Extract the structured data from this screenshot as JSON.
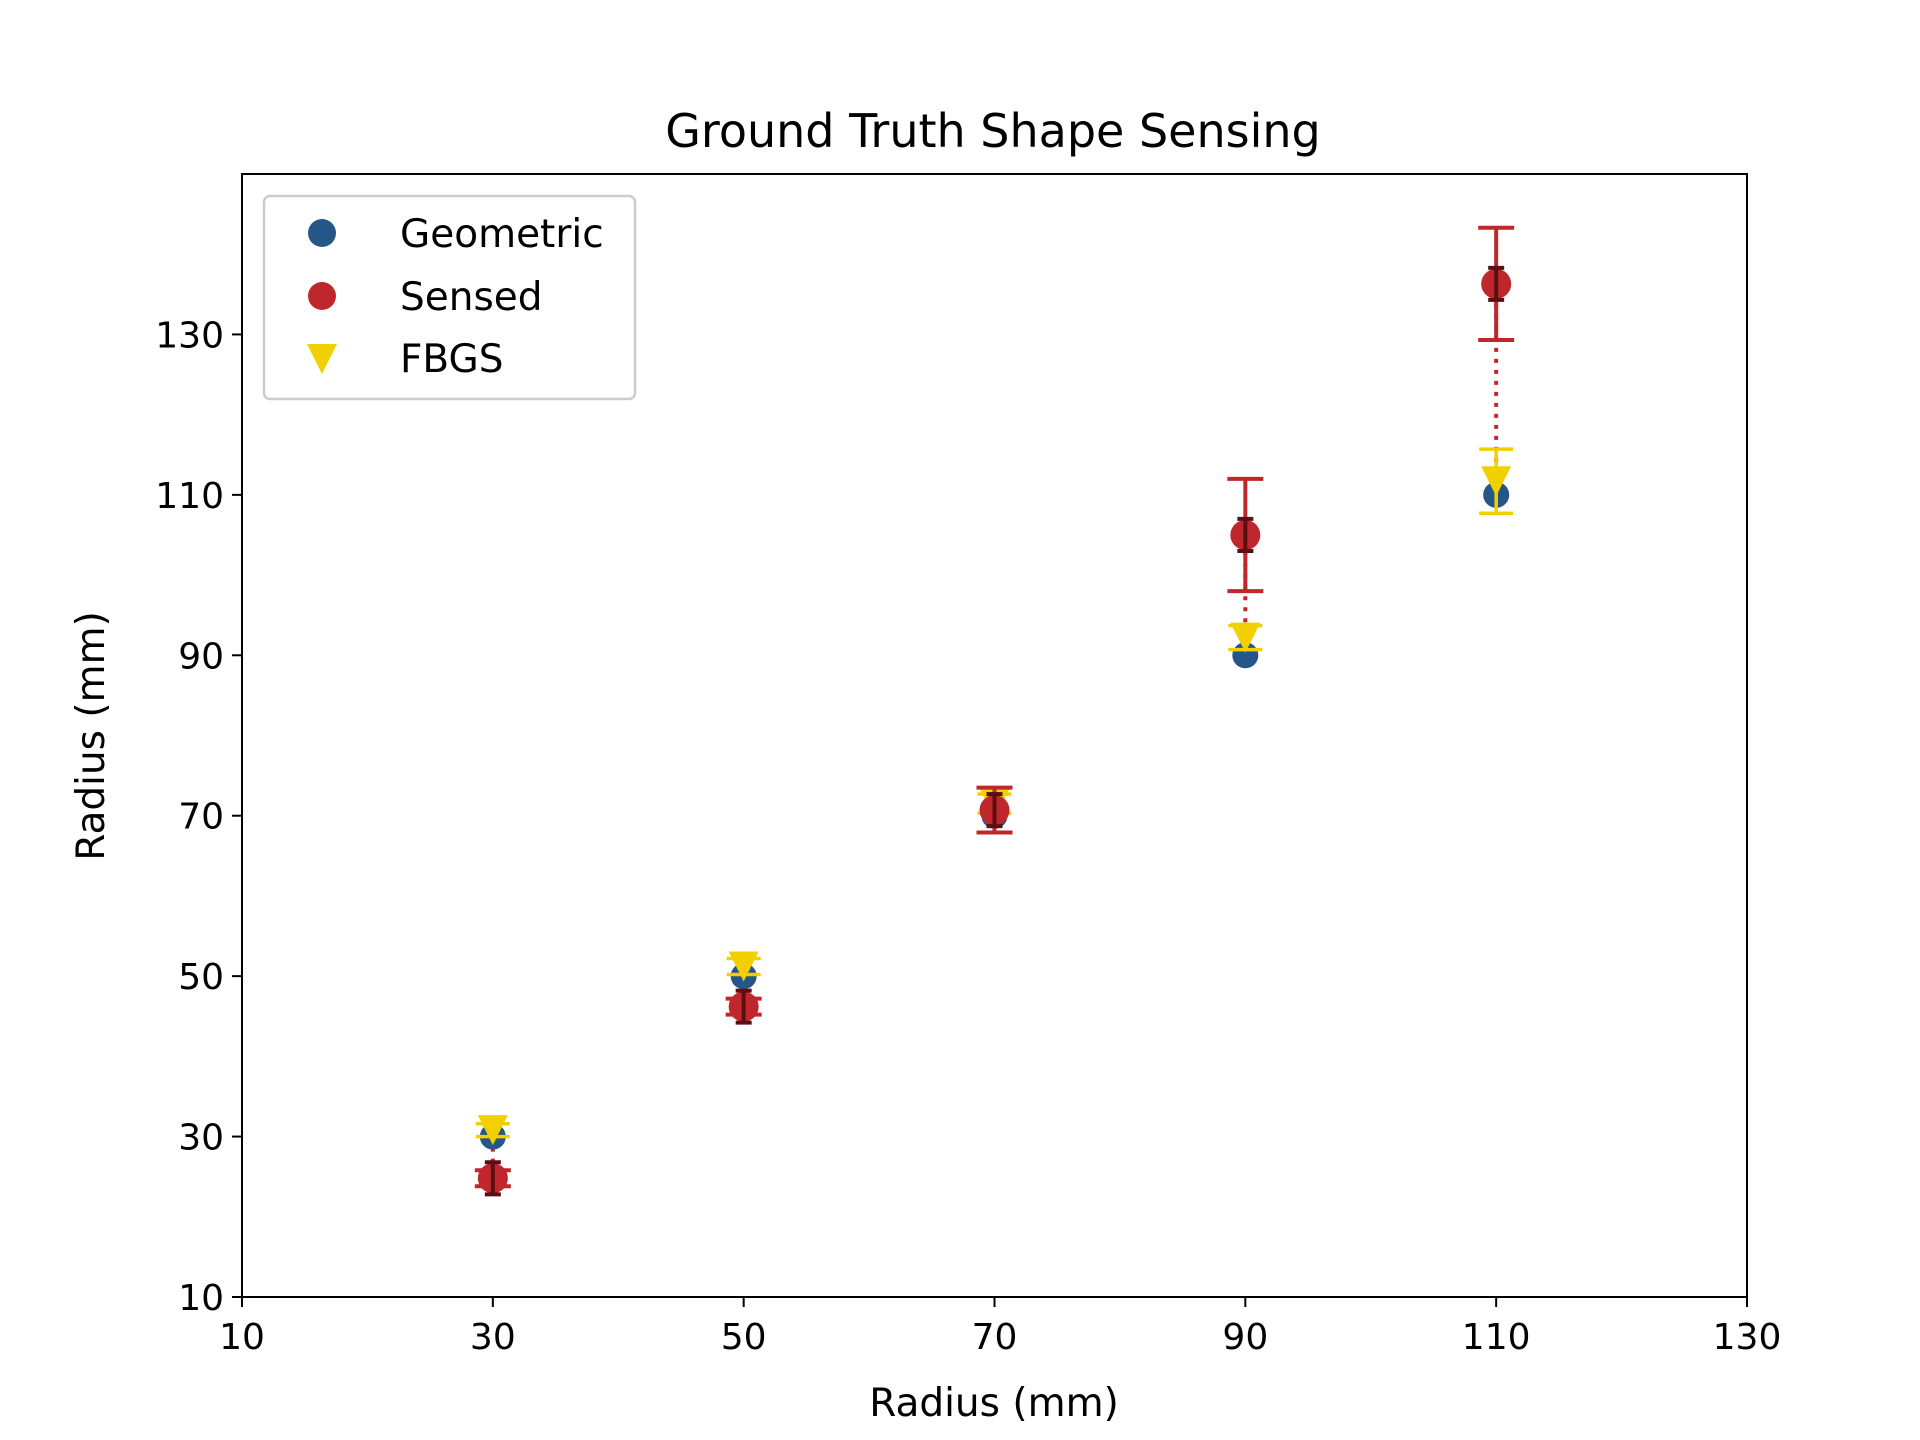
{
  "chart_data": {
    "type": "scatter",
    "title": "Ground Truth Shape Sensing",
    "xlabel": "Radius (mm)",
    "ylabel": "Radius (mm)",
    "xlim": [
      10,
      130
    ],
    "ylim": [
      10,
      150
    ],
    "xticks": [
      10,
      30,
      50,
      70,
      90,
      110,
      130
    ],
    "yticks": [
      10,
      30,
      50,
      70,
      90,
      110,
      130
    ],
    "grid": false,
    "legend_position": "upper-left",
    "series": [
      {
        "name": "Geometric",
        "marker": "circle",
        "color": "#245687",
        "x": [
          30,
          50,
          70,
          90,
          110
        ],
        "y": [
          30,
          50,
          70,
          90,
          110
        ]
      },
      {
        "name": "Sensed",
        "marker": "circle",
        "color": "#c0272d",
        "x": [
          30,
          50,
          70,
          90,
          110
        ],
        "y": [
          24.8,
          46.2,
          70.7,
          105,
          136.3
        ],
        "err_outer": [
          1.0,
          1.0,
          2.8,
          7.0,
          7.0
        ],
        "err_inner": [
          2.0,
          2.0,
          2.0,
          2.0,
          2.0
        ],
        "err_outer_color": "#c0272d",
        "err_inner_color": "#5a0f12"
      },
      {
        "name": "FBGS",
        "marker": "triangle-down",
        "color": "#f2d000",
        "x": [
          30,
          50,
          70,
          90,
          110
        ],
        "y": [
          30.8,
          51.2,
          71.5,
          92.2,
          111.7
        ],
        "err_outer": [
          0.8,
          1.0,
          1.2,
          1.5,
          4.0
        ]
      }
    ],
    "connectors": {
      "style": "dotted",
      "color": "#c0272d"
    }
  }
}
